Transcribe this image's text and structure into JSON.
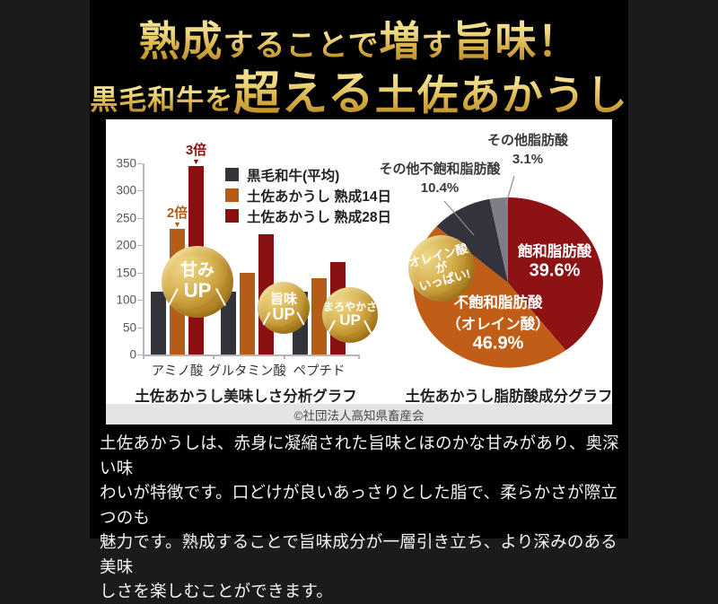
{
  "colors": {
    "side_bg": "#1b1b1b",
    "center_bg": "#000000",
    "panel_bg": "#ffffff",
    "gold_text_top": "#f8edb2",
    "gold_text_bottom": "#b07e1d",
    "band_bg": "#e4e4e4",
    "badge_gold": "#c49a38"
  },
  "header": {
    "line1_segments": [
      {
        "text": "熟成",
        "size": "xl"
      },
      {
        "text": "することで",
        "size": "md"
      },
      {
        "text": "増",
        "size": "xl"
      },
      {
        "text": "す",
        "size": "md"
      },
      {
        "text": "旨味！",
        "size": "xl"
      }
    ],
    "line2_segments": [
      {
        "text": "黒毛和牛を",
        "size": "sm"
      },
      {
        "text": "超える",
        "size": "xxl"
      },
      {
        "text": "土佐あかうし",
        "size": "xl"
      }
    ]
  },
  "chart_data": [
    {
      "type": "bar",
      "title": "土佐あかうし美味しさ分析グラフ",
      "categories": [
        "アミノ酸",
        "グルタミン酸",
        "ペプチド"
      ],
      "series": [
        {
          "name": "黒毛和牛(平均)",
          "color": "#33333a",
          "values": [
            115,
            115,
            115
          ]
        },
        {
          "name": "土佐あかうし 熟成14日",
          "color": "#b55c17",
          "values": [
            230,
            150,
            140
          ]
        },
        {
          "name": "土佐あかうし 熟成28日",
          "color": "#8a1112",
          "values": [
            345,
            220,
            170
          ]
        }
      ],
      "ylim": [
        0,
        350
      ],
      "yticks": [
        0,
        50,
        100,
        150,
        200,
        250,
        300,
        350
      ],
      "legend_position": "top-right",
      "grid": false,
      "annotations": [
        {
          "text": "2倍",
          "arrow": "▼",
          "color": "#b55c17",
          "category": 0,
          "series": 1
        },
        {
          "text": "3倍",
          "arrow": "▼",
          "color": "#8a1112",
          "category": 0,
          "series": 2
        }
      ],
      "badges": [
        {
          "lines": [
            "甘み",
            "UP"
          ]
        },
        {
          "lines": [
            "旨味",
            "UP"
          ]
        },
        {
          "lines": [
            "まろやかさ",
            "UP"
          ]
        }
      ]
    },
    {
      "type": "pie",
      "title": "土佐あかうし脂肪酸成分グラフ",
      "start_angle_deg": 0,
      "direction": "clockwise",
      "slices": [
        {
          "label": "飽和脂肪酸",
          "pct": 39.6,
          "pct_text": "39.6%",
          "color": "#8d1214",
          "label_pos": "inside"
        },
        {
          "label": "不飽和脂肪酸",
          "label2": "（オレイン酸）",
          "pct": 46.9,
          "pct_text": "46.9%",
          "color": "#c05e17",
          "label_pos": "inside"
        },
        {
          "label": "その他不飽和脂肪酸",
          "pct": 10.4,
          "pct_text": "10.4%",
          "color": "#33333b",
          "label_pos": "outside"
        },
        {
          "label": "その他脂肪酸",
          "pct": 3.1,
          "pct_text": "3.1%",
          "color": "#7e7e86",
          "label_pos": "outside"
        }
      ],
      "badge": {
        "lines": [
          "オレイン酸が",
          "いっぱい!"
        ]
      }
    }
  ],
  "copyright": "©社団法人高知県畜産会",
  "description": {
    "lines": [
      "土佐あかうしは、赤身に凝縮された旨味とほのかな甘みがあり、奥深い味",
      "わいが特徴です。口どけが良いあっさりとした脂で、柔らかさが際立つのも",
      "魅力です。熟成することで旨味成分が一層引き立ち、より深みのある美味",
      "しさを楽しむことができます。"
    ]
  }
}
